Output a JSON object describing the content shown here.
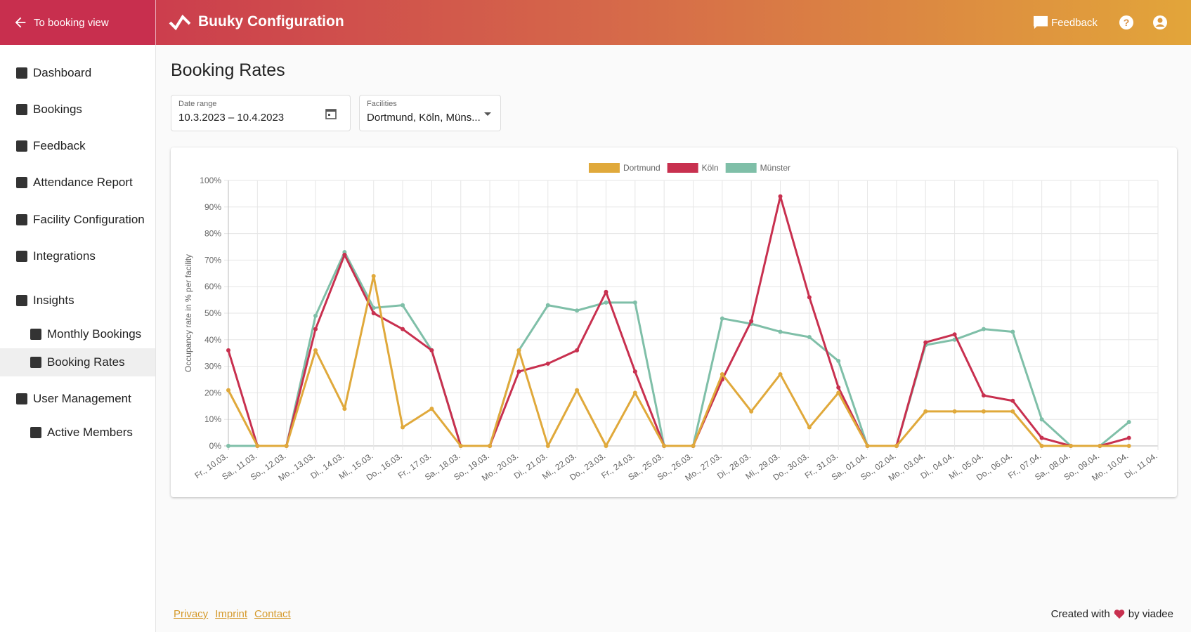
{
  "header": {
    "back": "To booking view",
    "title": "Buuky Configuration",
    "feedback": "Feedback"
  },
  "nav": {
    "items": [
      {
        "label": "Dashboard"
      },
      {
        "label": "Bookings"
      },
      {
        "label": "Feedback"
      },
      {
        "label": "Attendance Report"
      },
      {
        "label": "Facility Configuration"
      },
      {
        "label": "Integrations"
      },
      {
        "label": "Insights"
      },
      {
        "label": "Monthly Bookings"
      },
      {
        "label": "Booking Rates"
      },
      {
        "label": "User Management"
      },
      {
        "label": "Active Members"
      }
    ]
  },
  "page": {
    "title": "Booking Rates"
  },
  "filters": [
    {
      "label": "Date range",
      "value": "10.3.2023 – 10.4.2023"
    },
    {
      "label": "Facilities",
      "value": "Dortmund, Köln, Müns..."
    }
  ],
  "footer": {
    "links": [
      "Privacy",
      "Imprint",
      "Contact"
    ],
    "credit_before": "Created with",
    "credit_after": "by viadee"
  },
  "chart_data": {
    "type": "line",
    "y_label": "Occupancy rate in % per facility",
    "categories": [
      "Fr., 10.03.",
      "Sa., 11.03.",
      "So., 12.03.",
      "Mo., 13.03.",
      "Di., 14.03.",
      "Mi., 15.03.",
      "Do., 16.03.",
      "Fr., 17.03.",
      "Sa., 18.03.",
      "So., 19.03.",
      "Mo., 20.03.",
      "Di., 21.03.",
      "Mi., 22.03.",
      "Do., 23.03.",
      "Fr., 24.03.",
      "Sa., 25.03.",
      "So., 26.03.",
      "Mo., 27.03.",
      "Di., 28.03.",
      "Mi., 29.03.",
      "Do., 30.03.",
      "Fr., 31.03.",
      "Sa., 01.04.",
      "So., 02.04.",
      "Mo., 03.04.",
      "Di., 04.04.",
      "Mi., 05.04.",
      "Do., 06.04.",
      "Fr., 07.04.",
      "Sa., 08.04.",
      "So., 09.04.",
      "Mo., 10.04.",
      "Di., 11.04."
    ],
    "series": [
      {
        "name": "Dortmund",
        "color": "#e0a93b",
        "values": [
          21,
          0,
          0,
          36,
          14,
          64,
          7,
          14,
          0,
          0,
          36,
          0,
          21,
          0,
          20,
          0,
          0,
          27,
          13,
          27,
          7,
          20,
          0,
          0,
          13,
          13,
          13,
          13,
          0,
          0,
          0,
          0,
          null
        ]
      },
      {
        "name": "Köln",
        "color": "#c8304f",
        "values": [
          36,
          0,
          0,
          44,
          72,
          50,
          44,
          36,
          0,
          0,
          28,
          31,
          36,
          58,
          28,
          0,
          0,
          25,
          47,
          94,
          56,
          22,
          0,
          0,
          39,
          42,
          19,
          17,
          3,
          0,
          0,
          3,
          null
        ]
      },
      {
        "name": "Münster",
        "color": "#7fbfa8",
        "values": [
          0,
          0,
          0,
          49,
          73,
          52,
          53,
          36,
          0,
          0,
          36,
          53,
          51,
          54,
          54,
          0,
          0,
          48,
          46,
          43,
          41,
          32,
          0,
          0,
          38,
          40,
          44,
          43,
          10,
          0,
          0,
          9,
          null
        ]
      }
    ],
    "ylim": [
      0,
      100
    ],
    "yticks": [
      {
        "value": 0,
        "label": "0%"
      },
      {
        "value": 10,
        "label": "10%"
      },
      {
        "value": 20,
        "label": "20%"
      },
      {
        "value": 30,
        "label": "30%"
      },
      {
        "value": 40,
        "label": "40%"
      },
      {
        "value": 50,
        "label": "50%"
      },
      {
        "value": 60,
        "label": "60%"
      },
      {
        "value": 70,
        "label": "70%"
      },
      {
        "value": 80,
        "label": "80%"
      },
      {
        "value": 90,
        "label": "90%"
      },
      {
        "value": 100,
        "label": "100%"
      }
    ],
    "grid": true,
    "legend": "top"
  }
}
